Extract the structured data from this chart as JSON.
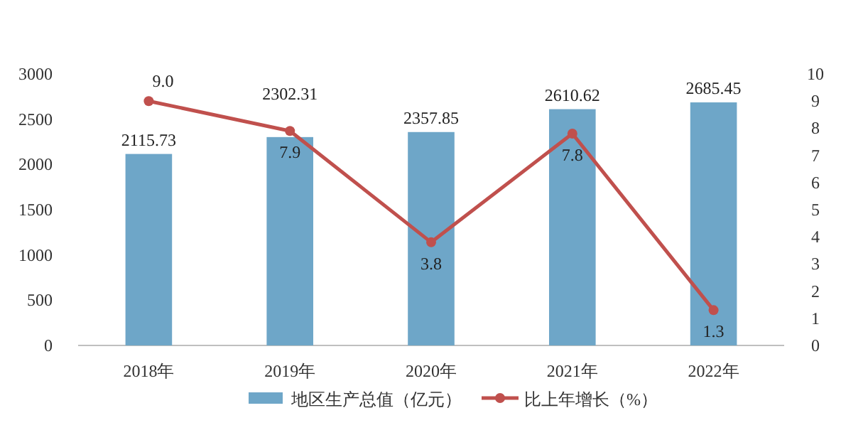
{
  "chart_data": {
    "type": "bar",
    "categories": [
      "2018年",
      "2019年",
      "2020年",
      "2021年",
      "2022年"
    ],
    "series": [
      {
        "name": "地区生产总值（亿元）",
        "color": "#6ea6c8",
        "values": [
          2115.73,
          2302.31,
          2357.85,
          2610.62,
          2685.45
        ]
      },
      {
        "name": "比上年增长（%）",
        "type": "line",
        "axis": "y2",
        "color": "#c0504d",
        "marker": "circle",
        "values": [
          9.0,
          7.9,
          3.8,
          7.8,
          1.3
        ],
        "value_labels": [
          "9.0",
          "7.9",
          "3.8",
          "7.8",
          "1.3"
        ]
      }
    ],
    "ylim": [
      0,
      3000
    ],
    "yticks": [
      0,
      500,
      1000,
      1500,
      2000,
      2500,
      3000
    ],
    "y2lim": [
      0,
      10
    ],
    "y2ticks": [
      0,
      1,
      2,
      3,
      4,
      5,
      6,
      7,
      8,
      9,
      10
    ],
    "data_labels": true,
    "legend": "bottom",
    "grid": false
  }
}
